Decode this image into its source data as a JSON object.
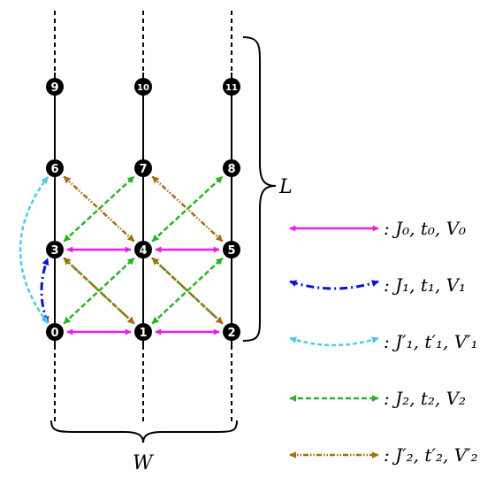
{
  "nodes": [
    {
      "id": "0",
      "label": "0"
    },
    {
      "id": "1",
      "label": "1"
    },
    {
      "id": "2",
      "label": "2"
    },
    {
      "id": "3",
      "label": "3"
    },
    {
      "id": "4",
      "label": "4"
    },
    {
      "id": "5",
      "label": "5"
    },
    {
      "id": "6",
      "label": "6"
    },
    {
      "id": "7",
      "label": "7"
    },
    {
      "id": "8",
      "label": "8"
    },
    {
      "id": "9",
      "label": "9"
    },
    {
      "id": "10",
      "label": "10"
    },
    {
      "id": "11",
      "label": "11"
    }
  ],
  "brace_labels": {
    "length": "L",
    "width": "W"
  },
  "colors": {
    "magenta": "#e61ee6",
    "blue": "#0a14d2",
    "cyan": "#50c8eb",
    "green": "#28b428",
    "brown": "#a56e14",
    "black": "#000000"
  },
  "legend": [
    {
      "key": "J0",
      "style": "magenta",
      "prefix": ":",
      "text": ": J₀, t₀, V₀"
    },
    {
      "key": "J1",
      "style": "blue",
      "prefix": ":",
      "text": ": J₁, t₁, V₁"
    },
    {
      "key": "J1p",
      "style": "cyan",
      "prefix": ":",
      "text": ": J′₁, t′₁, V′₁"
    },
    {
      "key": "J2",
      "style": "green",
      "prefix": ":",
      "text": ": J₂, t₂, V₂"
    },
    {
      "key": "J2p",
      "style": "brown",
      "prefix": ":",
      "text": ": J′₂, t′₂, V′₂"
    }
  ]
}
